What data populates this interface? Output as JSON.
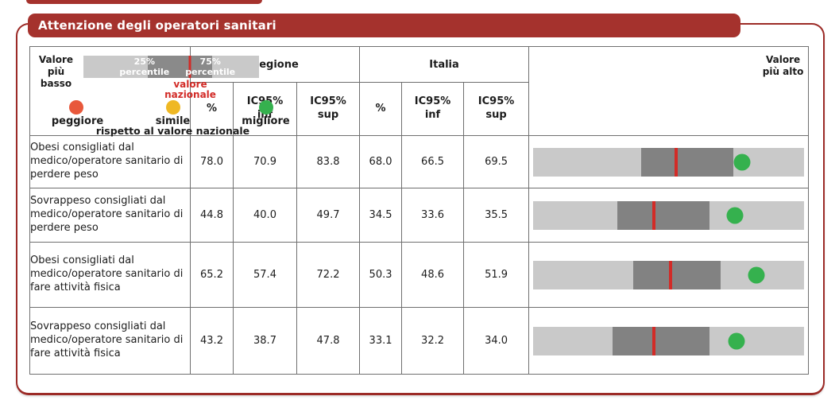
{
  "title_banner": "Attenzione degli operatori sanitari",
  "colors": {
    "banner": "#A5322D",
    "border": "#9C2B27",
    "bar_light": "#C9C9C9",
    "bar_dark": "#828282",
    "national_line": "#D22B27",
    "dot_peggiore": "#E8583B",
    "dot_simile": "#EFB824",
    "dot_migliore": "#35B14E"
  },
  "table": {
    "group_headers": {
      "regione": "Regione",
      "italia": "Italia"
    },
    "sub_headers": {
      "pct": "%",
      "ic_inf": "IC95%\ninf",
      "ic_sup": "IC95%\nsup"
    }
  },
  "legend": {
    "lowest": "Valore\npiù basso",
    "highest": "Valore\npiù alto",
    "p25": "25%\npercentile",
    "p75": "75%\npercentile",
    "national": "valore\nnazionale",
    "worse": "peggiore",
    "similar": "simile",
    "better": "migliore",
    "caption": "rispetto al valore nazionale"
  },
  "chart_data": {
    "type": "table",
    "title": "Attenzione degli operatori sanitari",
    "column_groups": [
      "Regione",
      "Italia"
    ],
    "columns": [
      "%",
      "IC95% inf",
      "IC95% sup",
      "%",
      "IC95% inf",
      "IC95% sup"
    ],
    "rows": [
      {
        "label": "Obesi consigliati dal medico/operatore sanitario di perdere peso",
        "regione": {
          "pct": "78.0",
          "ic_inf": "70.9",
          "ic_sup": "83.8"
        },
        "italia": {
          "pct": "68.0",
          "ic_inf": "66.5",
          "ic_sup": "69.5"
        },
        "bar": {
          "q25": 0.398,
          "q75": 0.74,
          "national": 0.529,
          "dot": 0.772,
          "dot_status": "migliore"
        }
      },
      {
        "label": "Sovrappeso consigliati dal medico/operatore sanitario di perdere peso",
        "regione": {
          "pct": "44.8",
          "ic_inf": "40.0",
          "ic_sup": "49.7"
        },
        "italia": {
          "pct": "34.5",
          "ic_inf": "33.6",
          "ic_sup": "35.5"
        },
        "bar": {
          "q25": 0.31,
          "q75": 0.652,
          "national": 0.447,
          "dot": 0.746,
          "dot_status": "migliore"
        }
      },
      {
        "label": "Obesi consigliati dal medico/operatore sanitario di fare attività fisica",
        "regione": {
          "pct": "65.2",
          "ic_inf": "57.4",
          "ic_sup": "72.2"
        },
        "italia": {
          "pct": "50.3",
          "ic_inf": "48.6",
          "ic_sup": "51.9"
        },
        "bar": {
          "q25": 0.368,
          "q75": 0.693,
          "national": 0.506,
          "dot": 0.825,
          "dot_status": "migliore"
        }
      },
      {
        "label": "Sovrappeso consigliati dal medico/operatore sanitario di fare attività fisica",
        "regione": {
          "pct": "43.2",
          "ic_inf": "38.7",
          "ic_sup": "47.8"
        },
        "italia": {
          "pct": "33.1",
          "ic_inf": "32.2",
          "ic_sup": "34.0"
        },
        "bar": {
          "q25": 0.292,
          "q75": 0.652,
          "national": 0.447,
          "dot": 0.751,
          "dot_status": "migliore"
        }
      }
    ]
  }
}
